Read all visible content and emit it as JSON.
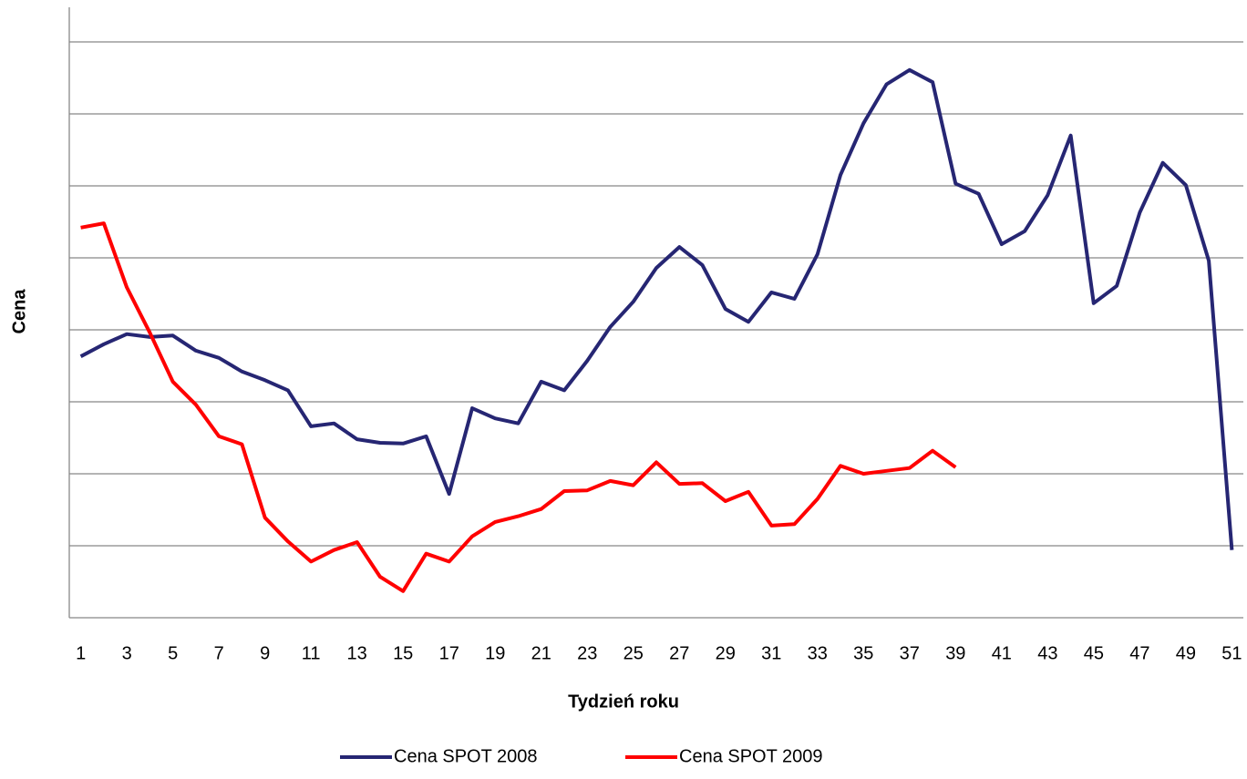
{
  "chart_data": {
    "type": "line",
    "x_label": "Tydzień roku",
    "y_label": "Cena",
    "categories": [
      1,
      null,
      3,
      null,
      5,
      null,
      7,
      null,
      9,
      null,
      11,
      null,
      13,
      null,
      15,
      null,
      17,
      null,
      19,
      null,
      21,
      null,
      23,
      null,
      25,
      null,
      27,
      null,
      29,
      null,
      31,
      null,
      33,
      null,
      35,
      null,
      37,
      null,
      39,
      null,
      41,
      null,
      43,
      null,
      45,
      null,
      47,
      null,
      49,
      null,
      51
    ],
    "series": [
      {
        "name": "Cena SPOT 2008",
        "color": "#262673",
        "values": [
          3.63,
          3.8,
          3.94,
          3.9,
          3.92,
          3.71,
          3.61,
          3.42,
          3.3,
          3.16,
          2.66,
          2.7,
          2.48,
          2.43,
          2.42,
          2.52,
          1.72,
          2.91,
          2.77,
          2.7,
          3.28,
          3.16,
          3.57,
          4.04,
          4.39,
          4.86,
          5.15,
          4.9,
          4.29,
          4.11,
          4.52,
          4.43,
          5.05,
          6.15,
          6.87,
          7.41,
          7.61,
          7.44,
          6.03,
          5.89,
          5.19,
          5.37,
          5.87,
          6.7,
          4.37,
          4.61,
          5.63,
          6.32,
          6.01,
          4.96,
          0.94
        ]
      },
      {
        "name": "Cena SPOT 2009",
        "color": "#ff0000",
        "values": [
          5.42,
          5.48,
          4.59,
          3.96,
          3.28,
          2.96,
          2.52,
          2.41,
          1.39,
          1.06,
          0.78,
          0.94,
          1.05,
          0.57,
          0.37,
          0.89,
          0.78,
          1.13,
          1.33,
          1.41,
          1.51,
          1.76,
          1.77,
          1.9,
          1.84,
          2.16,
          1.86,
          1.87,
          1.62,
          1.75,
          1.28,
          1.3,
          1.65,
          2.11,
          2.0,
          2.04,
          2.08,
          2.32,
          2.09,
          null,
          null,
          null,
          null,
          null,
          null,
          null,
          null,
          null,
          null,
          null,
          null
        ]
      }
    ],
    "ylim": [
      0,
      8.5
    ],
    "yticks": [
      1,
      2,
      3,
      4,
      5,
      6,
      7,
      8
    ],
    "grid": true,
    "legend": "bottom"
  }
}
